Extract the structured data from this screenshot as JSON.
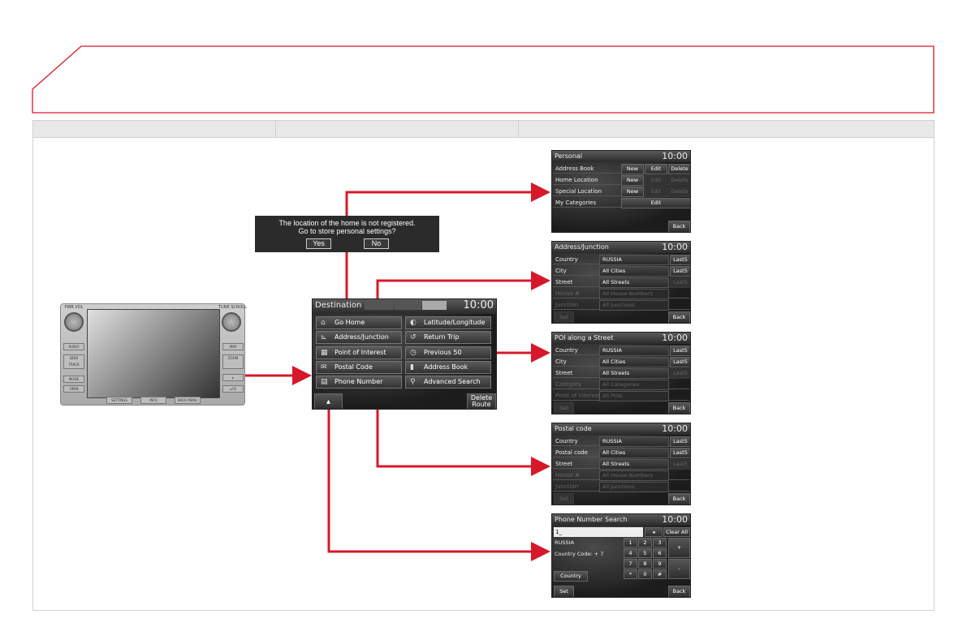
{
  "colors": {
    "accent": "#d7182a",
    "header_gray": "#e8e8e8"
  },
  "device": {
    "knob_left": "PWR VOL",
    "knob_right": "TUNE SCROLL",
    "left_buttons": [
      "AUDIO",
      "SEEK TRACK",
      "MODE",
      "OPEN"
    ],
    "right_buttons": [
      "MAP",
      "ZOOM",
      "▸",
      "◂ FE"
    ],
    "bottom_buttons": [
      "SETTINGS",
      "INFO",
      "BACK MENU"
    ]
  },
  "dialog": {
    "line1": "The location of the home is not registered.",
    "line2": "Go to store personal settings?",
    "yes": "Yes",
    "no": "No"
  },
  "destination": {
    "title": "Destination",
    "clock": "10:00",
    "items": [
      {
        "label": "Go Home",
        "icon": "home-icon"
      },
      {
        "label": "Latitude/Longitude",
        "icon": "globe-icon"
      },
      {
        "label": "Address/Junction",
        "icon": "junction-icon"
      },
      {
        "label": "Return Trip",
        "icon": "return-icon"
      },
      {
        "label": "Point of Interest",
        "icon": "poi-icon"
      },
      {
        "label": "Previous 50",
        "icon": "history-icon"
      },
      {
        "label": "Postal Code",
        "icon": "envelope-icon"
      },
      {
        "label": "Address Book",
        "icon": "book-icon"
      },
      {
        "label": "Phone Number",
        "icon": "phone-book-icon"
      },
      {
        "label": "Advanced Search",
        "icon": "person-search-icon"
      }
    ],
    "up_label": "▲",
    "delete_route": "Delete Route"
  },
  "personal": {
    "title": "Personal",
    "clock": "10:00",
    "back": "Back",
    "rows": [
      {
        "label": "Address Book",
        "new": "New",
        "edit": "Edit",
        "delete": "Delete",
        "enabled": true
      },
      {
        "label": "Home Location",
        "new": "New",
        "edit": "Edit",
        "delete": "Delete",
        "enabled": false
      },
      {
        "label": "Special Location",
        "new": "New",
        "edit": "Edit",
        "delete": "Delete",
        "enabled": false
      },
      {
        "label": "My Categories",
        "edit": "Edit"
      }
    ]
  },
  "forms": [
    {
      "title": "Address/Junction",
      "clock": "10:00",
      "set": "Set",
      "back": "Back",
      "rows": [
        {
          "label": "Country",
          "value": "RUSSIA",
          "last": "Last5",
          "enabled": true,
          "last_enabled": true
        },
        {
          "label": "City",
          "value": "All Cities",
          "last": "Last5",
          "enabled": true,
          "last_enabled": true
        },
        {
          "label": "Street",
          "value": "All Streets",
          "last": "Last5",
          "enabled": true,
          "last_enabled": false
        },
        {
          "label": "House #",
          "value": "All House Numbers",
          "enabled": false
        },
        {
          "label": "Junction",
          "value": "All Junctions",
          "enabled": false
        }
      ]
    },
    {
      "title": "POI along a Street",
      "clock": "10:00",
      "set": "Set",
      "back": "Back",
      "rows": [
        {
          "label": "Country",
          "value": "RUSSIA",
          "last": "Last5",
          "enabled": true,
          "last_enabled": true
        },
        {
          "label": "City",
          "value": "All Cities",
          "last": "Last5",
          "enabled": true,
          "last_enabled": true
        },
        {
          "label": "Street",
          "value": "All Streets",
          "last": "Last5",
          "enabled": true,
          "last_enabled": false
        },
        {
          "label": "Category",
          "value": "All Categories",
          "enabled": false
        },
        {
          "label": "Point of Interest",
          "value": "All POIs",
          "enabled": false
        }
      ]
    },
    {
      "title": "Postal code",
      "clock": "10:00",
      "set": "Set",
      "back": "Back",
      "rows": [
        {
          "label": "Country",
          "value": "RUSSIA",
          "last": "Last5",
          "enabled": true,
          "last_enabled": true
        },
        {
          "label": "Postal code",
          "value": "All Cities",
          "last": "Last5",
          "enabled": true,
          "last_enabled": true
        },
        {
          "label": "Street",
          "value": "All Streets",
          "last": "Last5",
          "enabled": true,
          "last_enabled": false
        },
        {
          "label": "House #",
          "value": "All House Numbers",
          "enabled": false
        },
        {
          "label": "Junction",
          "value": "All Junctions",
          "enabled": false
        }
      ]
    }
  ],
  "phone": {
    "title": "Phone Number Search",
    "clock": "10:00",
    "input": "1_",
    "backspace": "◂",
    "clear_all": "Clear All",
    "country_name": "RUSSIA",
    "country_code": "Country Code: + 7",
    "country_btn": "Country",
    "keys": [
      "1",
      "2",
      "3",
      "4",
      "5",
      "6",
      "7",
      "8",
      "9",
      "*",
      "0",
      "#"
    ],
    "plus": "+",
    "minus": "-",
    "set": "Set",
    "back": "Back"
  }
}
